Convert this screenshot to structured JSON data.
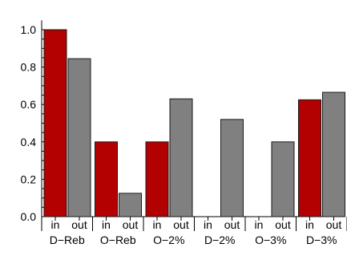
{
  "chart_data": {
    "type": "bar",
    "categories": [
      "D−Reb",
      "O−Reb",
      "O−2%",
      "D−2%",
      "O−3%",
      "D−3%"
    ],
    "bar_labels": [
      "in",
      "out"
    ],
    "series": [
      {
        "values": [
          1.0,
          0.4,
          0.4,
          0.0,
          0.0,
          0.625
        ],
        "color": "#b30000"
      },
      {
        "values": [
          0.845,
          0.125,
          0.63,
          0.52,
          0.4,
          0.665
        ],
        "color": "#808080"
      }
    ],
    "ylim": [
      0,
      1.05
    ],
    "yticks": [
      "0.0",
      "0.2",
      "0.4",
      "0.6",
      "0.8",
      "1.0"
    ],
    "title": "",
    "xlabel": "",
    "ylabel": "",
    "grid": false
  }
}
